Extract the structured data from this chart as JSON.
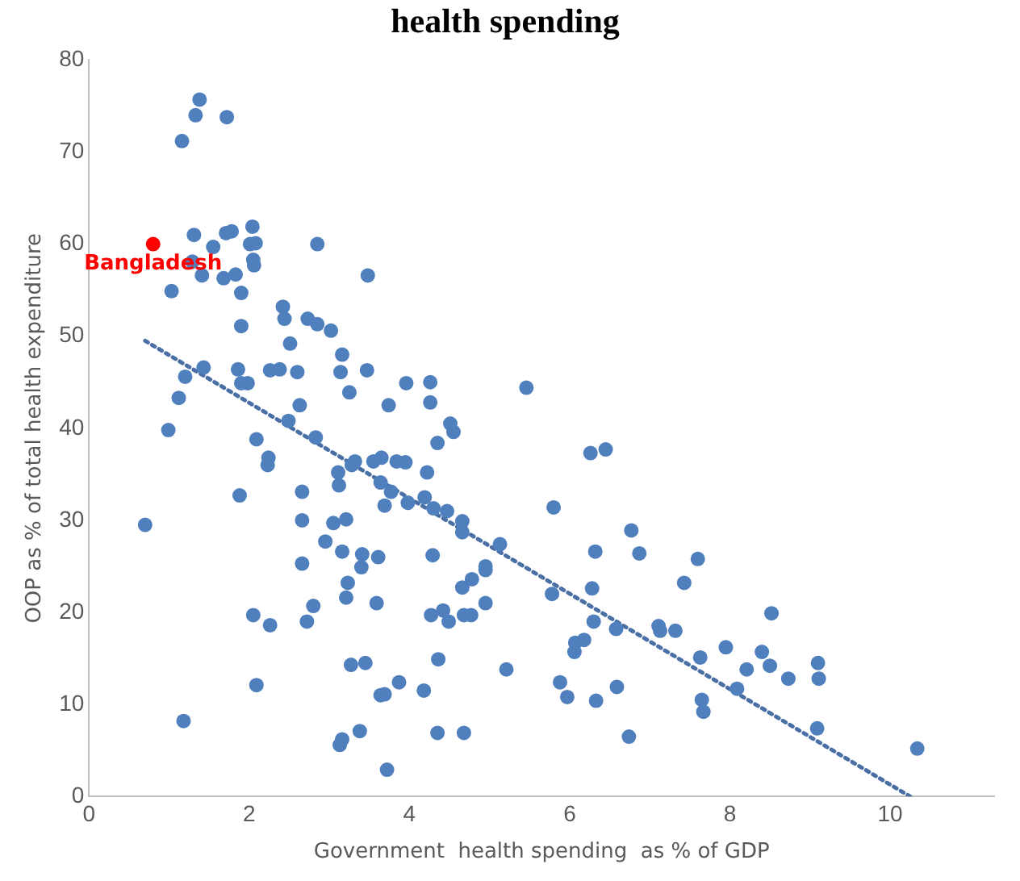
{
  "chart_data": {
    "type": "scatter",
    "title": "health spending",
    "xlabel": "Government  health spending  as % of GDP",
    "ylabel": "OOP as % of total health expenditure",
    "xlim": [
      0,
      11.3
    ],
    "xticks": [
      0,
      2,
      4,
      6,
      8,
      10
    ],
    "ylim": [
      0,
      80
    ],
    "yticks": [
      0,
      10,
      20,
      30,
      40,
      50,
      60,
      70,
      80
    ],
    "grid": false,
    "legend": false,
    "marker": "circle",
    "series": [
      {
        "color": "#4f7fbd",
        "x": [
          1.38,
          1.33,
          1.72,
          1.16,
          1.31,
          1.29,
          1.41,
          1.03,
          1.55,
          1.71,
          1.78,
          2.04,
          2.01,
          2.08,
          2.05,
          2.06,
          1.68,
          1.83,
          1.9,
          1.9,
          2.85,
          3.48,
          2.42,
          2.44,
          2.73,
          2.85,
          3.02,
          2.51,
          3.16,
          3.14,
          3.47,
          3.25,
          3.74,
          3.96,
          4.26,
          4.26,
          1.2,
          1.43,
          1.12,
          1.86,
          1.9,
          1.98,
          2.26,
          2.38,
          2.6,
          2.63,
          0.99,
          0.7,
          1.18,
          1.88,
          2.09,
          2.24,
          2.23,
          2.05,
          2.09,
          2.26,
          2.49,
          2.83,
          2.66,
          2.66,
          2.66,
          2.8,
          2.72,
          2.95,
          3.05,
          3.21,
          3.11,
          3.12,
          3.32,
          3.28,
          3.16,
          3.41,
          3.4,
          3.23,
          3.21,
          3.27,
          3.45,
          3.13,
          3.16,
          3.38,
          3.61,
          3.59,
          3.55,
          3.65,
          3.64,
          3.77,
          3.69,
          3.84,
          3.95,
          3.98,
          3.64,
          3.69,
          3.87,
          3.72,
          4.18,
          4.22,
          4.19,
          4.3,
          4.29,
          4.27,
          4.36,
          4.35,
          4.35,
          4.51,
          4.55,
          4.47,
          4.42,
          4.49,
          4.66,
          4.66,
          4.66,
          4.68,
          4.68,
          4.78,
          5.46,
          6.26,
          6.45,
          5.8,
          5.13,
          4.95,
          4.95,
          4.95,
          4.77,
          5.21,
          5.78,
          6.28,
          6.32,
          6.77,
          6.87,
          6.3,
          6.58,
          6.18,
          6.07,
          6.06,
          5.88,
          5.97,
          6.33,
          6.59,
          6.74,
          7.6,
          7.43,
          7.11,
          7.13,
          7.32,
          7.63,
          7.65,
          7.67,
          7.95,
          8.09,
          8.21,
          8.4,
          8.5,
          8.52,
          8.73,
          9.1,
          9.11,
          9.09,
          10.34
        ],
        "values": [
          75.7,
          74.0,
          73.8,
          71.2,
          61.0,
          58.1,
          56.6,
          54.9,
          59.7,
          61.2,
          61.4,
          61.9,
          60.0,
          60.1,
          58.3,
          57.7,
          56.3,
          56.7,
          54.7,
          51.1,
          60.0,
          56.6,
          53.2,
          51.9,
          51.9,
          51.3,
          50.6,
          49.2,
          48.0,
          46.1,
          46.3,
          43.9,
          42.5,
          44.9,
          45.0,
          42.8,
          45.6,
          46.6,
          43.3,
          46.4,
          44.9,
          44.9,
          46.3,
          46.4,
          46.1,
          42.5,
          39.8,
          29.5,
          8.2,
          32.7,
          38.8,
          36.8,
          36.0,
          19.7,
          12.1,
          18.6,
          40.8,
          39.0,
          33.1,
          30.0,
          25.3,
          20.7,
          19.0,
          27.7,
          29.7,
          30.1,
          35.2,
          33.8,
          36.4,
          36.0,
          26.6,
          26.3,
          24.9,
          23.2,
          21.6,
          14.3,
          14.5,
          5.6,
          6.2,
          7.1,
          26.0,
          21.0,
          36.4,
          36.8,
          34.1,
          33.1,
          31.6,
          36.4,
          36.3,
          31.9,
          11.0,
          11.1,
          12.4,
          2.9,
          11.5,
          35.2,
          32.5,
          31.3,
          26.2,
          19.7,
          14.9,
          6.9,
          38.4,
          40.5,
          39.6,
          31.0,
          20.2,
          19.0,
          29.9,
          28.7,
          22.7,
          19.7,
          6.9,
          23.6,
          44.4,
          37.3,
          37.7,
          31.4,
          27.4,
          25.0,
          24.6,
          21.0,
          19.7,
          13.8,
          22.0,
          22.6,
          26.6,
          28.9,
          26.4,
          19.0,
          18.2,
          17.0,
          16.7,
          15.7,
          12.4,
          10.8,
          10.4,
          11.9,
          6.5,
          25.8,
          23.2,
          18.5,
          18.0,
          18.0,
          15.1,
          10.5,
          9.2,
          16.2,
          11.7,
          13.8,
          15.7,
          14.2,
          19.9,
          12.8,
          14.5,
          12.8,
          7.4,
          5.2
        ]
      },
      {
        "name": "Bangladesh",
        "color": "#ff0000",
        "x": [
          0.8
        ],
        "values": [
          60.0
        ]
      },
      {
        "type": "line",
        "color": "#4a6fa5",
        "marker": "none",
        "line_style": "dotted",
        "x": [
          0.7,
          10.25
        ],
        "values": [
          49.5,
          0
        ]
      }
    ]
  }
}
